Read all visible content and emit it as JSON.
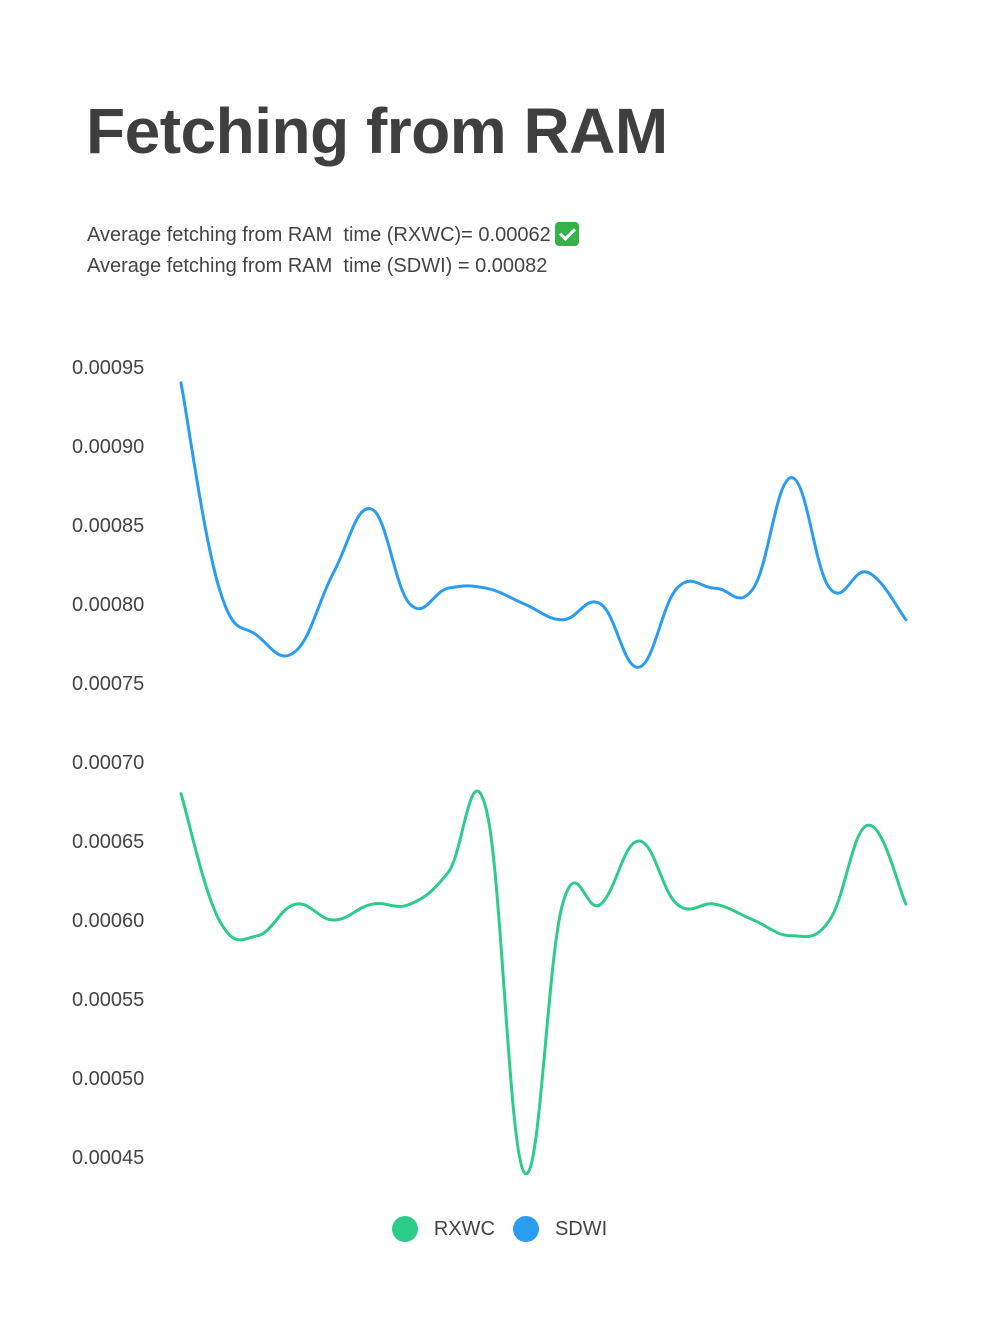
{
  "title": "Fetching from RAM",
  "subtitle_lines": [
    "Average fetching from RAM  time (RXWC)= 0.00062",
    "Average fetching from RAM  time (SDWI) = 0.00082"
  ],
  "check_icon": "check-mark-icon",
  "colors": {
    "RXWC": "#2ecc8a",
    "SDWI": "#2a9df0",
    "text": "#444444",
    "title": "#3f3f3f"
  },
  "chart_data": {
    "type": "line",
    "title": "",
    "xlabel": "",
    "ylabel": "",
    "ylim": [
      0.00045,
      0.00095
    ],
    "y_ticks": [
      "0.00095",
      "0.00090",
      "0.00085",
      "0.00080",
      "0.00075",
      "0.00070",
      "0.00065",
      "0.00060",
      "0.00055",
      "0.00050",
      "0.00045"
    ],
    "grid": false,
    "legend_position": "bottom-center",
    "x": [
      1,
      2,
      3,
      4,
      5,
      6,
      7,
      8,
      9,
      10,
      11,
      12,
      13,
      14,
      15,
      16,
      17,
      18,
      19,
      20
    ],
    "series": [
      {
        "name": "SDWI",
        "values": [
          0.00094,
          0.00081,
          0.00078,
          0.00077,
          0.00082,
          0.00086,
          0.0008,
          0.00081,
          0.00081,
          0.0008,
          0.00079,
          0.0008,
          0.00076,
          0.00081,
          0.00081,
          0.00081,
          0.00088,
          0.00081,
          0.00082,
          0.00079
        ]
      },
      {
        "name": "RXWC",
        "values": [
          0.00068,
          0.0006,
          0.00059,
          0.00061,
          0.0006,
          0.00061,
          0.00061,
          0.00063,
          0.00067,
          0.00044,
          0.00061,
          0.00061,
          0.00065,
          0.00061,
          0.00061,
          0.0006,
          0.00059,
          0.0006,
          0.00066,
          0.00061
        ]
      }
    ]
  },
  "legend": [
    {
      "label": "RXWC"
    },
    {
      "label": "SDWI"
    }
  ]
}
